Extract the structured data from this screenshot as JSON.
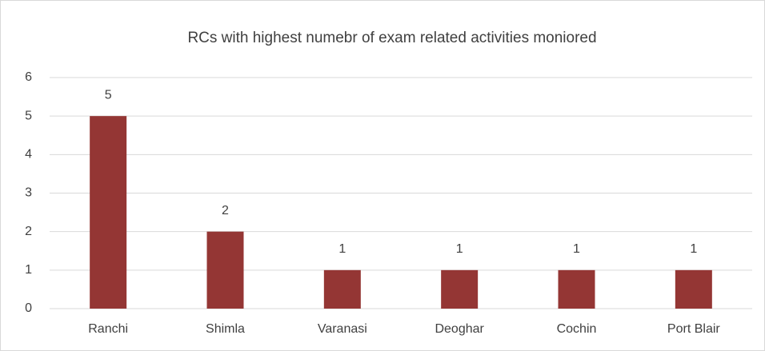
{
  "chart_data": {
    "type": "bar",
    "title": "RCs with highest numebr of exam related activities moniored",
    "categories": [
      "Ranchi",
      "Shimla",
      "Varanasi",
      "Deoghar",
      "Cochin",
      "Port Blair"
    ],
    "values": [
      5,
      2,
      1,
      1,
      1,
      1
    ],
    "color": "#943634",
    "ylim": [
      0,
      6
    ],
    "yticks": [
      0,
      1,
      2,
      3,
      4,
      5,
      6
    ],
    "grid": true,
    "data_labels": true
  }
}
